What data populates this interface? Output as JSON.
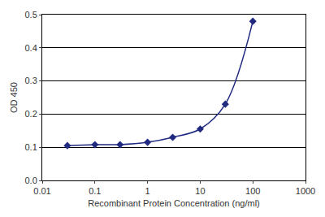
{
  "chart_data": {
    "type": "line",
    "x_label": "Recombinant Protein Concentration (ng/ml)",
    "y_label": "OD 450",
    "x": [
      0.03,
      0.1,
      0.3,
      1,
      3,
      10,
      30,
      100
    ],
    "values": [
      0.105,
      0.108,
      0.108,
      0.115,
      0.13,
      0.155,
      0.23,
      0.48
    ],
    "color": "#1f2a80",
    "marker": "diamond",
    "log": "x",
    "xlim": [
      0.01,
      1000
    ],
    "xticks": [
      0.01,
      0.1,
      1,
      10,
      100,
      1000
    ],
    "ylim": [
      0,
      0.5
    ],
    "yticks": [
      {
        "value": 0,
        "label": "0.0"
      },
      0.1,
      0.2,
      0.3,
      0.4,
      0.5
    ],
    "grid": true
  }
}
